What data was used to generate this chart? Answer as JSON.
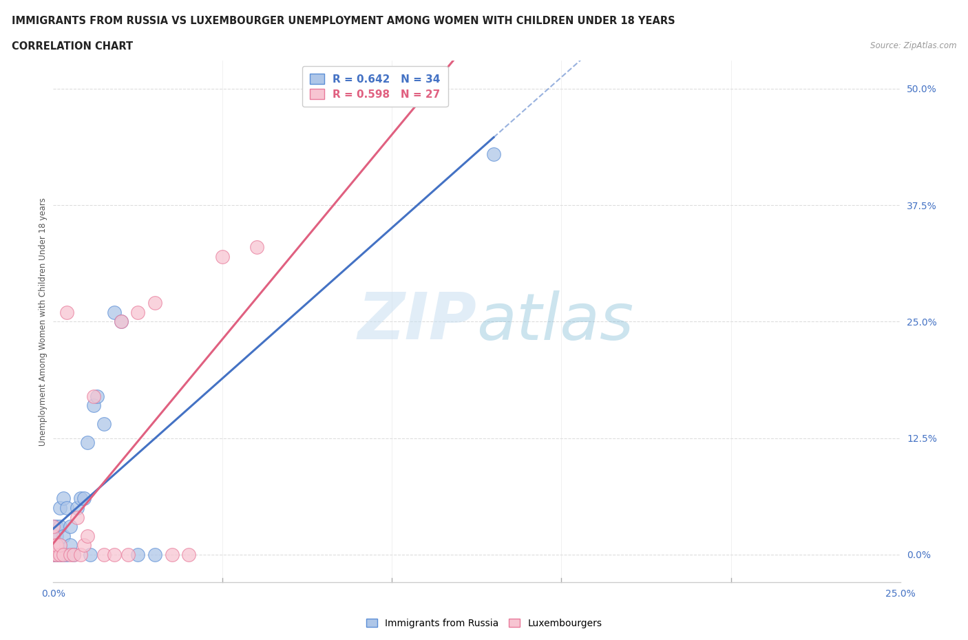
{
  "title_line1": "IMMIGRANTS FROM RUSSIA VS LUXEMBOURGER UNEMPLOYMENT AMONG WOMEN WITH CHILDREN UNDER 18 YEARS",
  "title_line2": "CORRELATION CHART",
  "source_text": "Source: ZipAtlas.com",
  "xlim": [
    0.0,
    0.25
  ],
  "ylim": [
    -0.03,
    0.53
  ],
  "ytick_vals": [
    0.0,
    0.125,
    0.25,
    0.375,
    0.5
  ],
  "ytick_labels": [
    "0.0%",
    "12.5%",
    "25.0%",
    "37.5%",
    "50.0%"
  ],
  "xtick_vals": [
    0.0,
    0.25
  ],
  "xtick_labels": [
    "0.0%",
    "25.0%"
  ],
  "extra_xtick_vals": [
    0.05,
    0.1,
    0.15,
    0.2
  ],
  "watermark_zip": "ZIP",
  "watermark_atlas": "atlas",
  "ylabel_label": "Unemployment Among Women with Children Under 18 years",
  "legend_blue_r": "0.642",
  "legend_blue_n": "34",
  "legend_pink_r": "0.598",
  "legend_pink_n": "27",
  "blue_scatter_x": [
    0.0,
    0.0,
    0.0,
    0.0,
    0.0,
    0.001,
    0.001,
    0.001,
    0.001,
    0.002,
    0.002,
    0.002,
    0.002,
    0.003,
    0.003,
    0.003,
    0.004,
    0.004,
    0.005,
    0.005,
    0.006,
    0.007,
    0.008,
    0.009,
    0.01,
    0.011,
    0.012,
    0.013,
    0.015,
    0.018,
    0.02,
    0.025,
    0.03,
    0.13
  ],
  "blue_scatter_y": [
    0.0,
    0.0,
    0.01,
    0.02,
    0.03,
    0.0,
    0.01,
    0.02,
    0.03,
    0.0,
    0.01,
    0.03,
    0.05,
    0.0,
    0.02,
    0.06,
    0.0,
    0.05,
    0.01,
    0.03,
    0.0,
    0.05,
    0.06,
    0.06,
    0.12,
    0.0,
    0.16,
    0.17,
    0.14,
    0.26,
    0.25,
    0.0,
    0.0,
    0.43
  ],
  "pink_scatter_x": [
    0.0,
    0.0,
    0.0,
    0.0,
    0.001,
    0.001,
    0.002,
    0.002,
    0.003,
    0.004,
    0.005,
    0.006,
    0.007,
    0.008,
    0.009,
    0.01,
    0.012,
    0.015,
    0.018,
    0.02,
    0.022,
    0.025,
    0.03,
    0.035,
    0.04,
    0.05,
    0.06
  ],
  "pink_scatter_y": [
    0.0,
    0.01,
    0.02,
    0.03,
    0.0,
    0.01,
    0.0,
    0.01,
    0.0,
    0.26,
    0.0,
    0.0,
    0.04,
    0.0,
    0.01,
    0.02,
    0.17,
    0.0,
    0.0,
    0.25,
    0.0,
    0.26,
    0.27,
    0.0,
    0.0,
    0.32,
    0.33
  ],
  "blue_color": "#aec6e8",
  "blue_edge_color": "#5b8ed6",
  "blue_line_color": "#4472c4",
  "pink_color": "#f7c5d2",
  "pink_edge_color": "#e87a9a",
  "pink_line_color": "#e06080",
  "grid_color": "#dddddd",
  "tick_color": "#4472c4",
  "background_color": "#ffffff"
}
